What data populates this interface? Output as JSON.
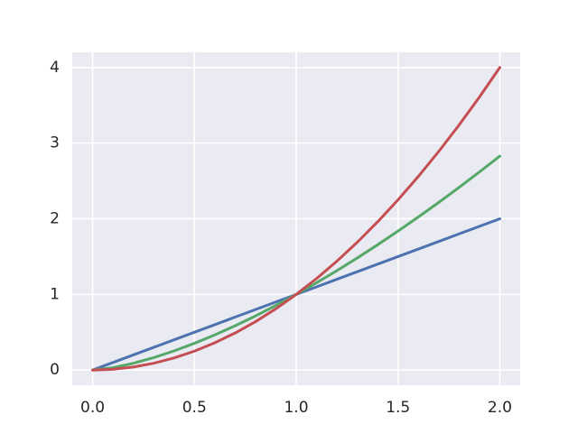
{
  "chart_data": {
    "type": "line",
    "x": [
      0,
      0.1,
      0.2,
      0.3,
      0.4,
      0.5,
      0.6,
      0.7,
      0.8,
      0.9,
      1,
      1.1,
      1.2,
      1.3,
      1.4,
      1.5,
      1.6,
      1.7,
      1.8,
      1.9,
      2
    ],
    "series": [
      {
        "color": "#4c72b0",
        "values": [
          0,
          0.1,
          0.2,
          0.3,
          0.4,
          0.5,
          0.6,
          0.7,
          0.8,
          0.9,
          1,
          1.1,
          1.2,
          1.3,
          1.4,
          1.5,
          1.6,
          1.7,
          1.8,
          1.9,
          2
        ]
      },
      {
        "color": "#55a868",
        "values": [
          0,
          0.0316,
          0.0894,
          0.1643,
          0.253,
          0.3536,
          0.4648,
          0.5857,
          0.7155,
          0.8538,
          1,
          1.1537,
          1.3145,
          1.4822,
          1.6565,
          1.8371,
          2.0239,
          2.2165,
          2.415,
          2.619,
          2.8284
        ]
      },
      {
        "color": "#c44e52",
        "values": [
          0,
          0.01,
          0.04,
          0.09,
          0.16,
          0.25,
          0.36,
          0.49,
          0.64,
          0.81,
          1,
          1.21,
          1.44,
          1.69,
          1.96,
          2.25,
          2.56,
          2.89,
          3.24,
          3.61,
          4
        ]
      }
    ],
    "xlim": [
      -0.1,
      2.1
    ],
    "ylim": [
      -0.2,
      4.2
    ],
    "xticks": [
      {
        "value": 0,
        "label": "0.0"
      },
      0.5,
      {
        "value": 1,
        "label": "1.0"
      },
      1.5,
      {
        "value": 2,
        "label": "2.0"
      }
    ],
    "yticks": [
      0,
      1,
      2,
      3,
      4
    ],
    "grid": true,
    "background": "#eaeaf2"
  }
}
